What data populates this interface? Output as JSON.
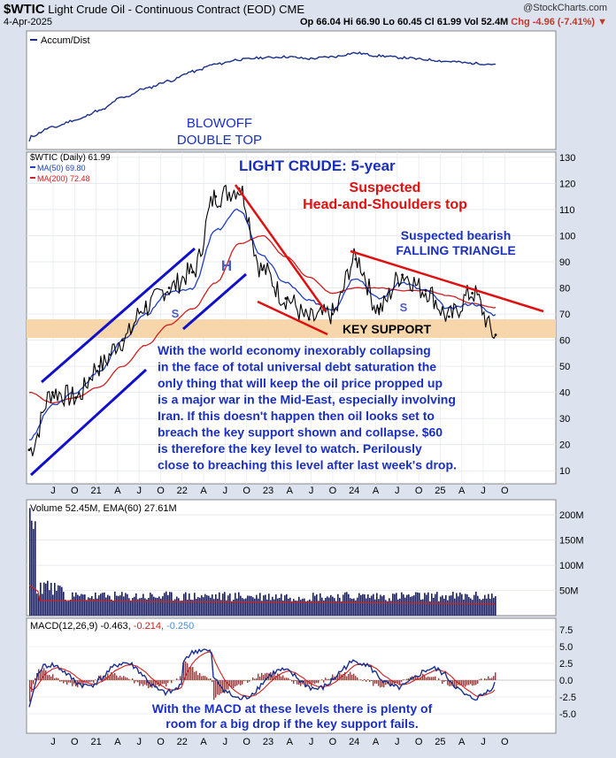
{
  "header": {
    "symbol": "$WTIC",
    "name": "Light Crude Oil - Continuous Contract (EOD)",
    "exchange": "CME",
    "brand": "@StockCharts.com",
    "date": "4-Apr-2025",
    "open": "Op 66.04",
    "high": "Hi 66.90",
    "low": "Lo 60.45",
    "close": "Cl 61.99",
    "volume": "Vol 52.4M",
    "change": "Chg -4.96 (-7.41%)"
  },
  "accum": {
    "legend": "Accum/Dist",
    "annotation_line1": "BLOWOFF",
    "annotation_line2": "DOUBLE TOP"
  },
  "price_panel": {
    "legend_main": "$WTIC (Daily) 61.99",
    "legend_ma50": "MA(50) 69.80",
    "legend_ma200": "MA(200) 72.48",
    "title": "LIGHT CRUDE: 5-year",
    "hs_line1": "Suspected",
    "hs_line2": "Head-and-Shoulders top",
    "tri_line1": "Suspected bearish",
    "tri_line2": "FALLING TRIANGLE",
    "key_support": "KEY SUPPORT",
    "label_s1": "S",
    "label_h": "H",
    "label_s2": "S",
    "commentary": [
      "With the world economy inexorably collapsing",
      "in the face of total universal debt saturation the",
      "only thing that will keep the oil price propped up",
      "is a major war in the Mid-East, especially involving",
      "Iran. If this doesn't happen then oil looks set to",
      "breach the key support shown and collapse. $60",
      "is therefore the key level to watch. Perilously",
      "close to breaching this level after last week's drop."
    ],
    "y_ticks": [
      "130",
      "120",
      "110",
      "100",
      "90",
      "80",
      "70",
      "60",
      "50",
      "40",
      "30",
      "20",
      "10"
    ]
  },
  "volume_panel": {
    "legend": "Volume 52.45M, EMA(60) 27.61M",
    "y_ticks": [
      "200M",
      "150M",
      "100M",
      "50M"
    ]
  },
  "macd_panel": {
    "legend_macd": "MACD(12,26,9) -0.463, ",
    "legend_signal": "-0.214, ",
    "legend_hist": "-0.250",
    "y_ticks": [
      "7.5",
      "5.0",
      "2.5",
      "0.0",
      "-2.5",
      "-5.0"
    ],
    "comment_line1": "With the MACD at these levels there is plenty of",
    "comment_line2": "room for a big drop if the key support fails."
  },
  "x_axis_labels": [
    "J",
    "O",
    "21",
    "A",
    "J",
    "O",
    "22",
    "A",
    "J",
    "O",
    "23",
    "A",
    "J",
    "O",
    "24",
    "A",
    "J",
    "O",
    "25",
    "A",
    "J",
    "O"
  ],
  "colors": {
    "price": "#000000",
    "ma50": "#1f3fbf",
    "ma200": "#d02020",
    "channel": "#1010cc",
    "hs_lines": "#e01010",
    "support_band": "#f6d6aa",
    "annot_blue": "#1a2fc0",
    "annot_red": "#e01010",
    "volume": "#1a1a7a",
    "hist": "#cc2222"
  },
  "chart_data": {
    "type": "line",
    "title": "LIGHT CRUDE: 5-year",
    "ylabel": "",
    "ylim": [
      5,
      132
    ],
    "x_dates": [
      "2020-05",
      "2020-07",
      "2020-10",
      "2021-01",
      "2021-04",
      "2021-07",
      "2021-10",
      "2022-01",
      "2022-03",
      "2022-06",
      "2022-09",
      "2022-12",
      "2023-03",
      "2023-06",
      "2023-09",
      "2023-12",
      "2024-04",
      "2024-07",
      "2024-10",
      "2025-01",
      "2025-04"
    ],
    "series": [
      {
        "name": "$WTIC (Daily) 61.99",
        "values": [
          18,
          40,
          38,
          50,
          60,
          73,
          80,
          86,
          115,
          118,
          87,
          76,
          68,
          70,
          91,
          72,
          85,
          79,
          69,
          78,
          62
        ]
      },
      {
        "name": "MA(50) 69.80",
        "values": [
          22,
          35,
          40,
          48,
          60,
          70,
          78,
          80,
          102,
          110,
          92,
          82,
          75,
          72,
          84,
          76,
          82,
          79,
          72,
          74,
          69.8
        ]
      },
      {
        "name": "MA(200) 72.48",
        "values": [
          40,
          36,
          38,
          42,
          50,
          58,
          66,
          72,
          82,
          97,
          100,
          92,
          84,
          78,
          80,
          80,
          79,
          79,
          77,
          74,
          72.48
        ]
      }
    ]
  }
}
